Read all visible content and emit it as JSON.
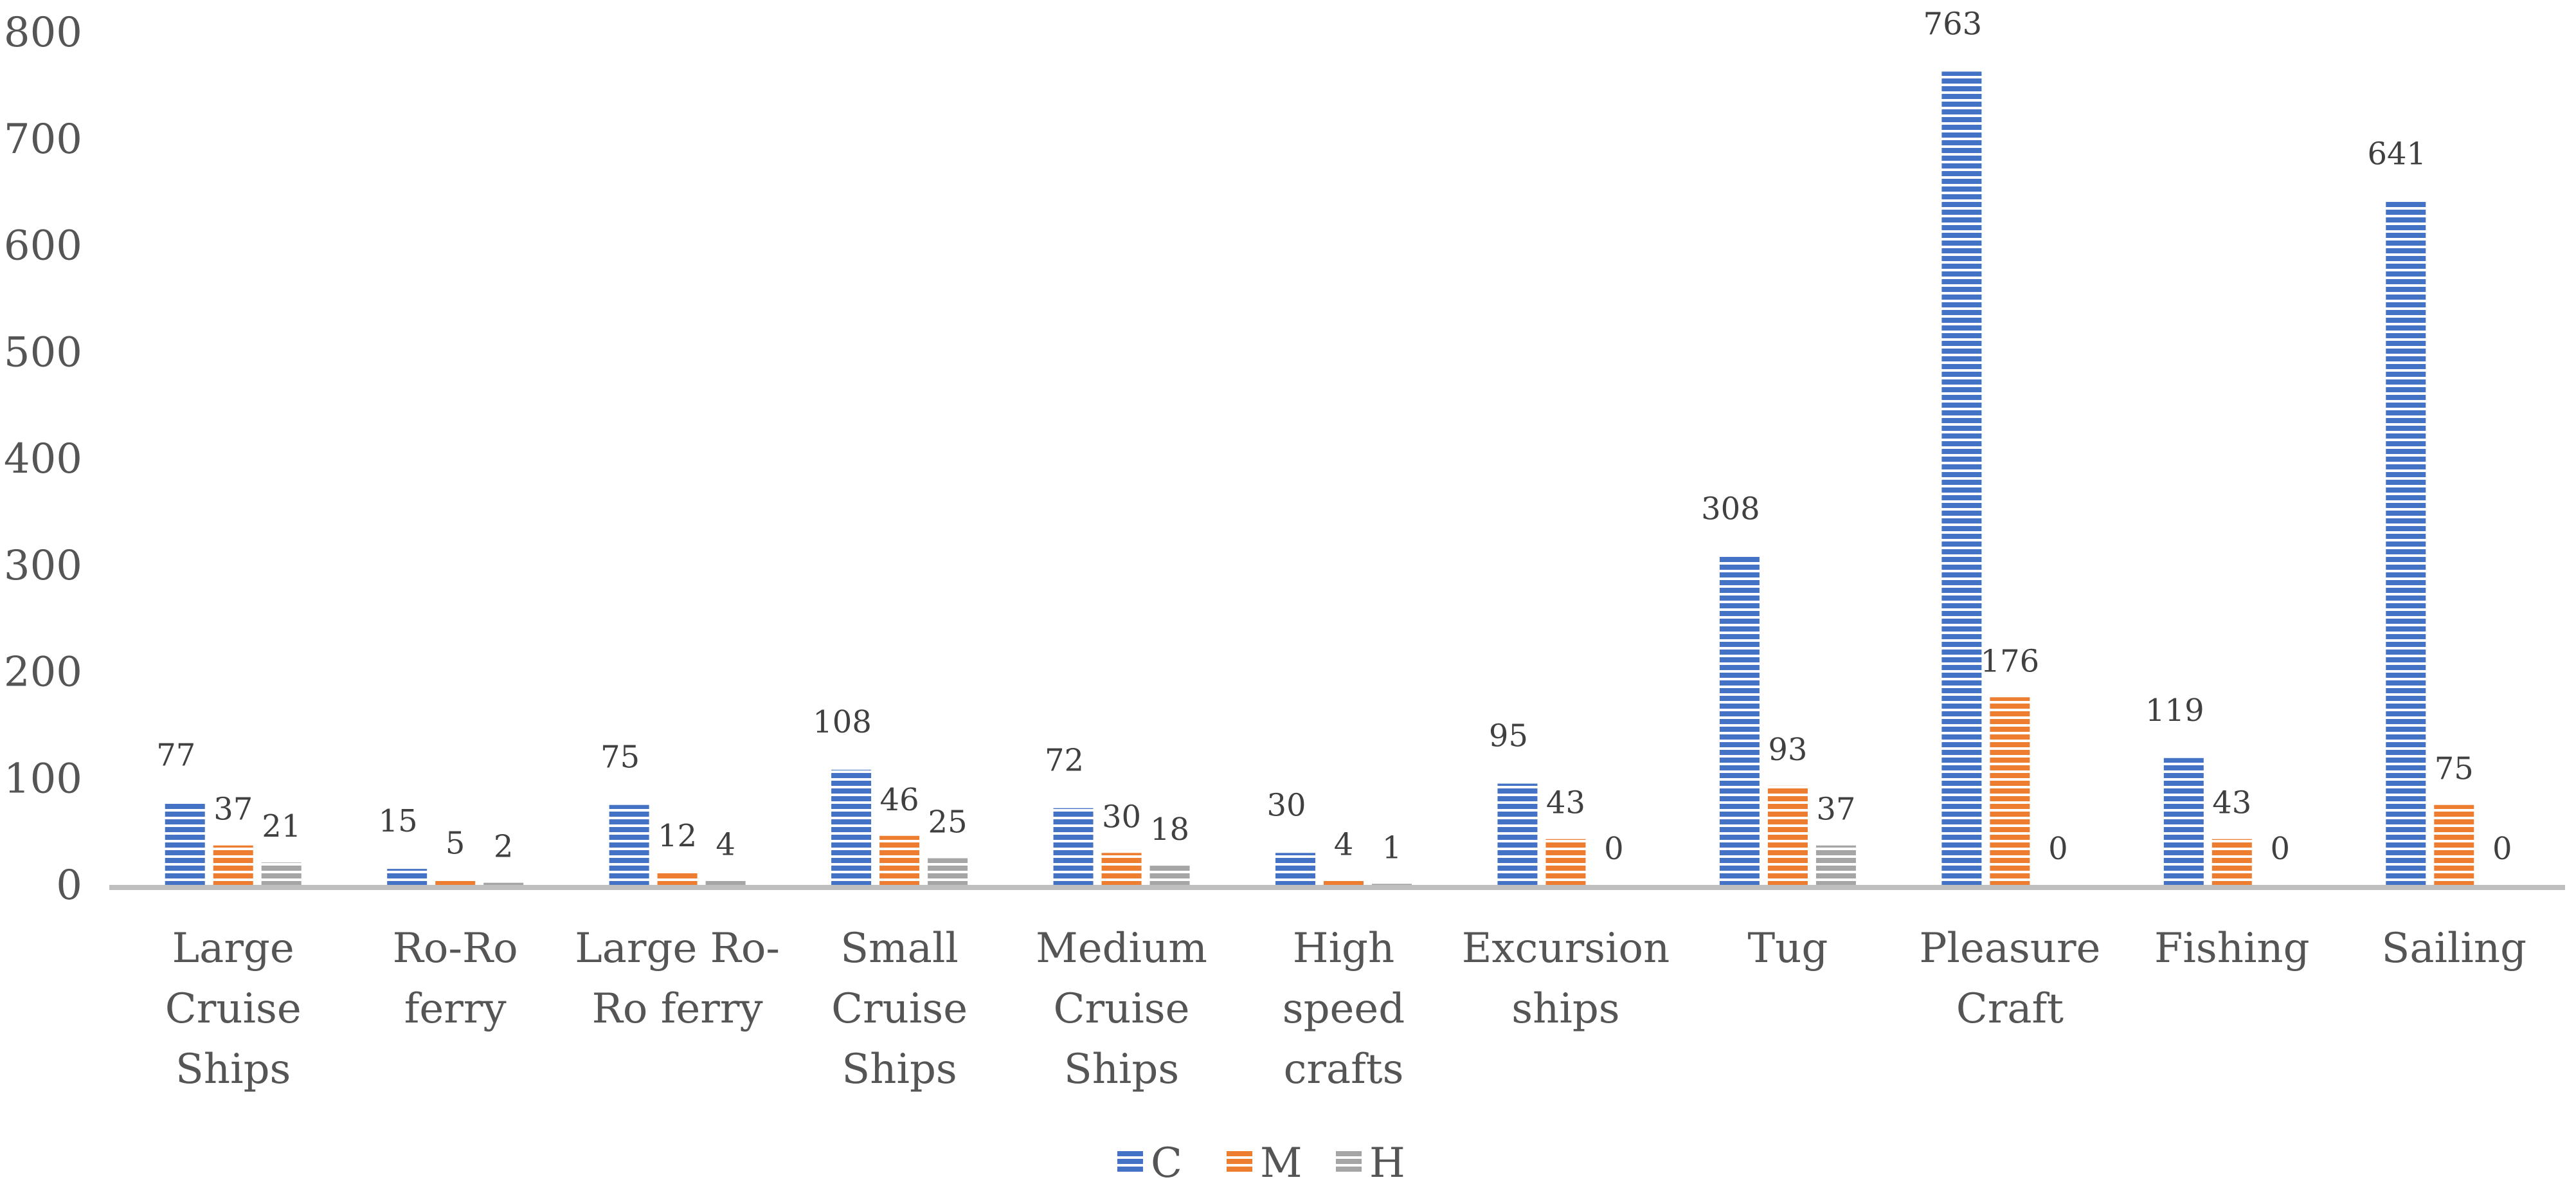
{
  "chart_data": {
    "type": "bar",
    "title": "",
    "xlabel": "",
    "ylabel": "",
    "ylim": [
      0,
      800
    ],
    "yticks": [
      0,
      100,
      200,
      300,
      400,
      500,
      600,
      700,
      800
    ],
    "categories": [
      [
        "Large",
        "Cruise",
        "Ships"
      ],
      [
        "Ro-Ro",
        "ferry"
      ],
      [
        "Large Ro-",
        "Ro ferry"
      ],
      [
        "Small",
        "Cruise",
        "Ships"
      ],
      [
        "Medium",
        "Cruise",
        "Ships"
      ],
      [
        "High",
        "speed",
        "crafts"
      ],
      [
        "Excursion",
        "ships"
      ],
      [
        "Tug"
      ],
      [
        "Pleasure",
        "Craft"
      ],
      [
        "Fishing"
      ],
      [
        "Sailing"
      ]
    ],
    "series": [
      {
        "name": "C",
        "color": "#4472C4",
        "values": [
          77,
          15,
          75,
          108,
          72,
          30,
          95,
          308,
          763,
          119,
          641
        ]
      },
      {
        "name": "M",
        "color": "#ED7D31",
        "values": [
          37,
          5,
          12,
          46,
          30,
          4,
          43,
          93,
          176,
          43,
          75
        ]
      },
      {
        "name": "H",
        "color": "#A5A5A5",
        "values": [
          21,
          2,
          4,
          25,
          18,
          1,
          0,
          37,
          0,
          0,
          0
        ]
      }
    ],
    "legend": "bottom-center",
    "grid": false
  }
}
